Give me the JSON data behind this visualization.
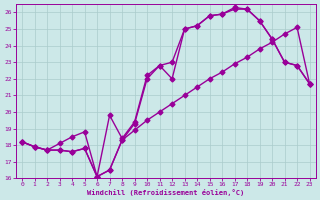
{
  "background_color": "#cce8e8",
  "grid_color": "#aacccc",
  "line_color": "#990099",
  "xlabel": "Windchill (Refroidissement éolien,°C)",
  "xlim": [
    -0.5,
    23.5
  ],
  "ylim": [
    16,
    26.5
  ],
  "xticks": [
    0,
    1,
    2,
    3,
    4,
    5,
    6,
    7,
    8,
    9,
    10,
    11,
    12,
    13,
    14,
    15,
    16,
    17,
    18,
    19,
    20,
    21,
    22,
    23
  ],
  "yticks": [
    16,
    17,
    18,
    19,
    20,
    21,
    22,
    23,
    24,
    25,
    26
  ],
  "line1_x": [
    0,
    1,
    2,
    3,
    4,
    5,
    6,
    7,
    8,
    9,
    10,
    11,
    12,
    13,
    14,
    15,
    16,
    17,
    18,
    19,
    20,
    21,
    22,
    23
  ],
  "line1_y": [
    18.2,
    17.9,
    17.7,
    17.7,
    17.6,
    17.8,
    16.1,
    16.5,
    18.3,
    18.9,
    19.5,
    20.0,
    20.5,
    21.0,
    21.5,
    22.0,
    22.4,
    22.9,
    23.3,
    23.8,
    24.2,
    24.7,
    25.1,
    21.7
  ],
  "line2_x": [
    0,
    1,
    2,
    3,
    4,
    5,
    6,
    7,
    8,
    9,
    10,
    11,
    12,
    13,
    14,
    15,
    16,
    17,
    18,
    19,
    20,
    21,
    22,
    23
  ],
  "line2_y": [
    18.2,
    17.9,
    17.7,
    17.7,
    17.6,
    17.8,
    16.1,
    16.5,
    18.3,
    19.3,
    22.0,
    22.8,
    23.0,
    25.0,
    25.2,
    25.8,
    25.9,
    26.2,
    26.2,
    25.5,
    24.4,
    23.0,
    22.8,
    21.7
  ],
  "line3_x": [
    0,
    1,
    2,
    3,
    4,
    5,
    6,
    7,
    8,
    9,
    10,
    11,
    12,
    13,
    14,
    15,
    16,
    17,
    18,
    19,
    20,
    21,
    22,
    23
  ],
  "line3_y": [
    18.2,
    17.9,
    17.7,
    18.1,
    18.5,
    18.8,
    16.1,
    19.8,
    18.4,
    19.4,
    22.2,
    22.8,
    22.0,
    25.0,
    25.2,
    25.8,
    25.9,
    26.3,
    26.2,
    25.5,
    24.4,
    23.0,
    22.8,
    21.7
  ],
  "marker": "D",
  "markersize": 2.5,
  "linewidth": 1.0
}
